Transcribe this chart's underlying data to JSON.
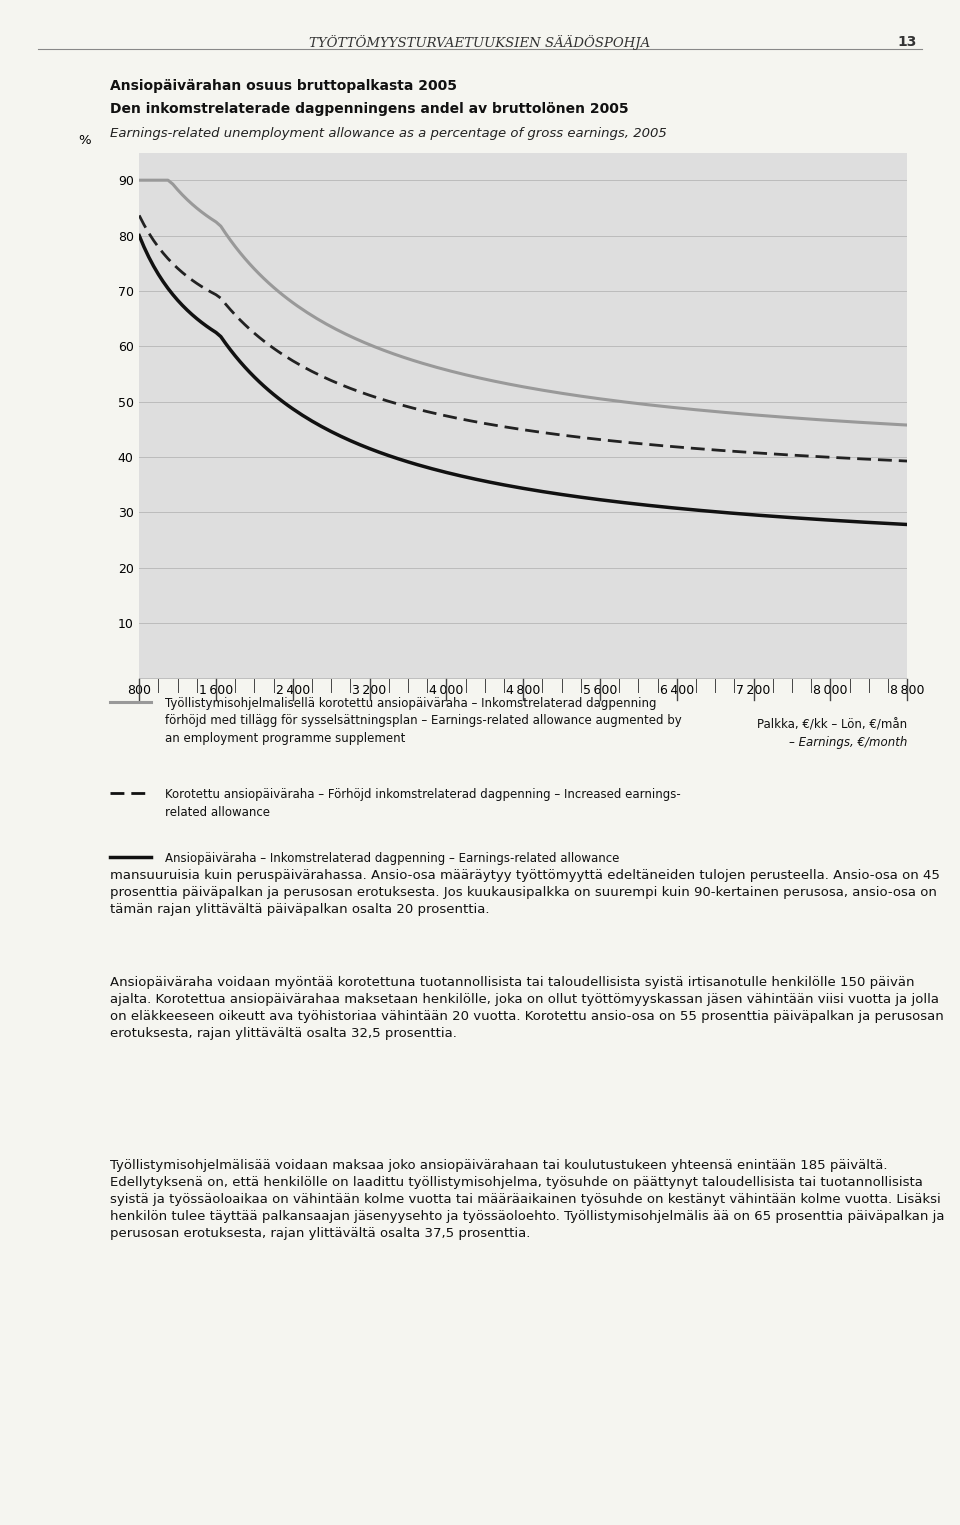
{
  "title_line1": "Ansiopäivärahan osuus bruttopalkasta 2005",
  "title_line2": "Den inkomstrelaterade dagpenningens andel av bruttolönen 2005",
  "title_line3": "Earnings-related unemployment allowance as a percentage of gross earnings, 2005",
  "page_header": "TYÖTTÖMYYSTURVAETUUKSIEN SÄÄDÖSPOHJA",
  "page_number": "13",
  "ylabel": "%",
  "background_color": "#dedede",
  "figure_bg": "#f5f5f0",
  "legend1": "Työllistymisohjelmalisellä korotettu ansiopäiväraha – Inkomstrelaterad dagpenning förhöjd med tillägg för sysselsättningsplan – Earnings-related allowance augmented by an employment programme supplement",
  "legend2": "Korotettu ansiopäiväraha – Förhöjd inkomstrelaterad dagpenning – Increased earnings-related allowance",
  "legend3": "Ansiopäiväraha – Inkomstrelaterad dagpenning – Earnings-related allowance",
  "xlabel1": "Palkka, €/kk – Lön, €/mån",
  "xlabel2": "– Earnings, €/month",
  "body_text1": "mansuuruisia kuin peruspäivärahassa. Ansio-osa määräytyy työttömyyttä edeltäneiden tulojen perusteella. Ansio-osa on 45 prosenttia päiväpalkan ja perusosan erotuksesta. Jos kuukausipalkka on suurempi kuin 90-kertainen perusosa, ansio-osa on tämän rajan ylittävältä päiväpalkan osalta 20 prosenttia.",
  "body_text2": "Ansiopäiväraha voidaan myöntää korotettuna tuotannollisista tai taloudellisista syistä irtisanotulle henkilölle 150 päivän ajalta. Korotettua ansiopäivärahaa maksetaan henkilölle, joka on ollut työttömyyskassan jäsen vähintään viisi vuotta ja jolla on eläkkeeseen oikeutt ava työhistoriaa vähintään 20 vuotta. Korotettu ansio-osa on 55 prosenttia päiväpalkan ja perusosan erotuksesta, rajan ylittävältä osalta 32,5 prosenttia.",
  "body_text3": "Työllistymisohjelmälisää voidaan maksaa joko ansiopäivärahaan tai koulutustukeen yhteensä enintään 185 päivältä. Edellytyksenä on, että henkilölle on laadittu työllistymisohjelma, työsuhde on päättynyt taloudellisista tai tuotannollisista syistä ja työssäoloaikaa on vähintään kolme vuotta tai määräaikainen työsuhde on kestänyt vähintään kolme vuotta. Lisäksi henkilön tulee täyttää palkansaajan jäsenyysehto ja työssäoloehto. Työllistymisohjelmälis ää on 65 prosenttia päiväpalkan ja perusosan erotuksesta, rajan ylittävältä osalta 37,5 prosenttia."
}
